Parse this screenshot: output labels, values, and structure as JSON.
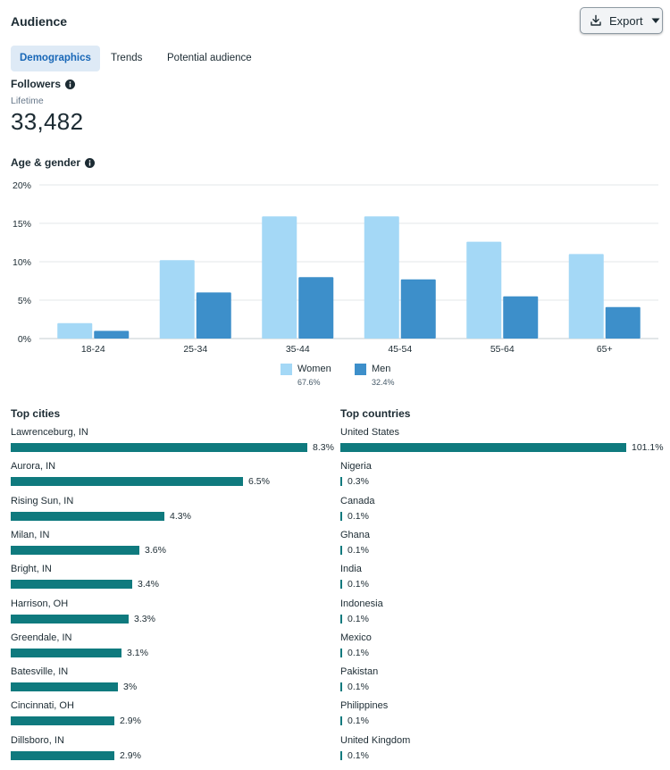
{
  "header": {
    "title": "Audience",
    "export_label": "Export"
  },
  "tabs": [
    {
      "label": "Demographics",
      "active": true
    },
    {
      "label": "Trends",
      "active": false
    },
    {
      "label": "Potential audience",
      "active": false
    }
  ],
  "followers": {
    "heading": "Followers",
    "sublabel": "Lifetime",
    "count": "33,482"
  },
  "age_gender": {
    "heading": "Age & gender"
  },
  "chart_data": {
    "type": "bar",
    "categories": [
      "18-24",
      "25-34",
      "35-44",
      "45-54",
      "55-64",
      "65+"
    ],
    "series": [
      {
        "name": "Women",
        "values": [
          2.0,
          10.2,
          15.9,
          15.9,
          12.6,
          11.0
        ],
        "color": "#a4d8f6"
      },
      {
        "name": "Men",
        "values": [
          1.0,
          6.0,
          8.0,
          7.7,
          5.5,
          4.1
        ],
        "color": "#3d8fca"
      }
    ],
    "yticks": [
      "0%",
      "5%",
      "10%",
      "15%",
      "20%"
    ],
    "ylim": [
      0,
      20
    ],
    "grid": true,
    "legend_placement": "bottom-center"
  },
  "legend": [
    {
      "label": "Women",
      "pct": "67.6%",
      "color": "#a4d8f6"
    },
    {
      "label": "Men",
      "pct": "32.4%",
      "color": "#3d8fca"
    }
  ],
  "top_cities": {
    "heading": "Top cities",
    "items": [
      {
        "name": "Lawrenceburg, IN",
        "value": 8.3,
        "label": "8.3%"
      },
      {
        "name": "Aurora, IN",
        "value": 6.5,
        "label": "6.5%"
      },
      {
        "name": "Rising Sun, IN",
        "value": 4.3,
        "label": "4.3%"
      },
      {
        "name": "Milan, IN",
        "value": 3.6,
        "label": "3.6%"
      },
      {
        "name": "Bright, IN",
        "value": 3.4,
        "label": "3.4%"
      },
      {
        "name": "Harrison, OH",
        "value": 3.3,
        "label": "3.3%"
      },
      {
        "name": "Greendale, IN",
        "value": 3.1,
        "label": "3.1%"
      },
      {
        "name": "Batesville, IN",
        "value": 3.0,
        "label": "3%"
      },
      {
        "name": "Cincinnati, OH",
        "value": 2.9,
        "label": "2.9%"
      },
      {
        "name": "Dillsboro, IN",
        "value": 2.9,
        "label": "2.9%"
      }
    ]
  },
  "top_countries": {
    "heading": "Top countries",
    "items": [
      {
        "name": "United States",
        "value": 101.1,
        "label": "101.1%"
      },
      {
        "name": "Nigeria",
        "value": 0.3,
        "label": "0.3%"
      },
      {
        "name": "Canada",
        "value": 0.1,
        "label": "0.1%"
      },
      {
        "name": "Ghana",
        "value": 0.1,
        "label": "0.1%"
      },
      {
        "name": "India",
        "value": 0.1,
        "label": "0.1%"
      },
      {
        "name": "Indonesia",
        "value": 0.1,
        "label": "0.1%"
      },
      {
        "name": "Mexico",
        "value": 0.1,
        "label": "0.1%"
      },
      {
        "name": "Pakistan",
        "value": 0.1,
        "label": "0.1%"
      },
      {
        "name": "Philippines",
        "value": 0.1,
        "label": "0.1%"
      },
      {
        "name": "United Kingdom",
        "value": 0.1,
        "label": "0.1%"
      }
    ]
  },
  "colors": {
    "accent": "#1867b7",
    "bar": "#0f7a7e",
    "tab_active_bg": "#deeaf6"
  },
  "icons": {
    "export": "download-icon",
    "dropdown": "caret-down-icon",
    "info": "info-icon"
  }
}
